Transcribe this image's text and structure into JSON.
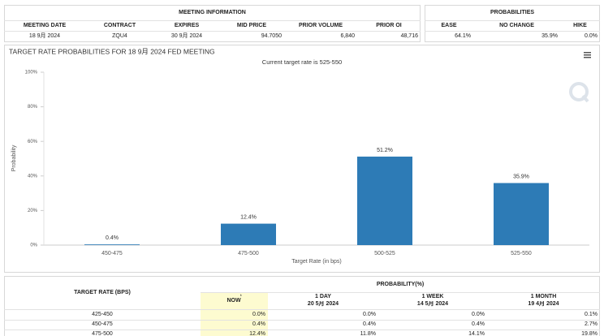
{
  "meeting_info": {
    "title": "MEETING INFORMATION",
    "columns": [
      "MEETING DATE",
      "CONTRACT",
      "EXPIRES",
      "MID PRICE",
      "PRIOR VOLUME",
      "PRIOR OI"
    ],
    "row": [
      "18 9月 2024",
      "ZQU4",
      "30 9月 2024",
      "94.7050",
      "6,840",
      "48,716"
    ]
  },
  "probabilities": {
    "title": "PROBABILITIES",
    "columns": [
      "EASE",
      "NO CHANGE",
      "HIKE"
    ],
    "row": [
      "64.1%",
      "35.9%",
      "0.0%"
    ]
  },
  "chart_data": {
    "type": "bar",
    "title": "TARGET RATE PROBABILITIES FOR 18 9月 2024 FED MEETING",
    "subtitle": "Current target rate is 525-550",
    "x_label": "Target Rate (in bps)",
    "y_label": "Probability",
    "categories": [
      "450-475",
      "475-500",
      "500-525",
      "525-550"
    ],
    "values": [
      0.4,
      12.4,
      51.2,
      35.9
    ],
    "value_labels": [
      "0.4%",
      "12.4%",
      "51.2%",
      "35.9%"
    ],
    "color": "#2d7bb6",
    "ylim": [
      0,
      100
    ],
    "yticks": [
      {
        "value": 0,
        "label": "0%"
      },
      {
        "value": 20,
        "label": "20%"
      },
      {
        "value": 40,
        "label": "40%"
      },
      {
        "value": 60,
        "label": "60%"
      },
      {
        "value": 80,
        "label": "80%"
      },
      {
        "value": 100,
        "label": "100%"
      }
    ],
    "grid": false
  },
  "rate_table": {
    "header": "TARGET RATE (BPS)",
    "group_header": "PROBABILITY(%)",
    "columns": [
      {
        "label": "NOW",
        "note": "*"
      },
      {
        "label": "1 DAY",
        "date": "20 5月 2024"
      },
      {
        "label": "1 WEEK",
        "date": "14 5月 2024"
      },
      {
        "label": "1 MONTH",
        "date": "19 4月 2024"
      }
    ],
    "rows": [
      [
        "425-450",
        "0.0%",
        "0.0%",
        "0.0%",
        "0.1%"
      ],
      [
        "450-475",
        "0.4%",
        "0.4%",
        "0.4%",
        "2.7%"
      ],
      [
        "475-500",
        "12.4%",
        "11.8%",
        "14.1%",
        "19.8%"
      ]
    ]
  }
}
